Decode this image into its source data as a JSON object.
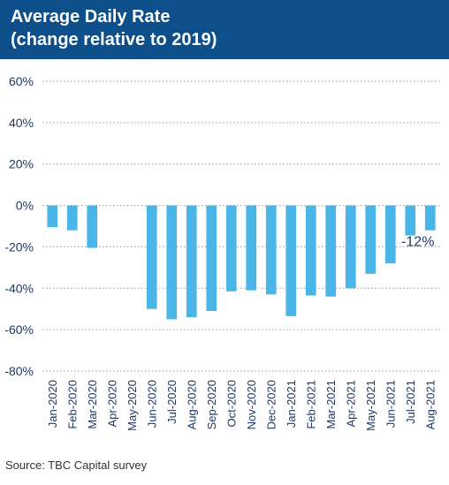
{
  "header": {
    "title_line1": "Average Daily Rate",
    "title_line2": "(change relative to 2019)",
    "background_color": "#0d4f8b",
    "text_color": "#ffffff"
  },
  "source": "Source: TBC Capital survey",
  "chart_data": {
    "type": "bar",
    "title": "Average Daily Rate (change relative to 2019)",
    "categories": [
      "Jan-2020",
      "Feb-2020",
      "Mar-2020",
      "Apr-2020",
      "May-2020",
      "Jun-2020",
      "Jul-2020",
      "Aug-2020",
      "Sep-2020",
      "Oct-2020",
      "Nov-2020",
      "Dec-2020",
      "Jan-2021",
      "Feb-2021",
      "Mar-2021",
      "Apr-2021",
      "May-2021",
      "Jun-2021",
      "Jul-2021",
      "Aug-2021"
    ],
    "values": [
      -10.5,
      -12,
      -20.5,
      null,
      null,
      -50,
      -55,
      -54,
      -51,
      -41.5,
      -41,
      -43,
      -53.5,
      -43.5,
      -44,
      -40,
      -33,
      -28,
      -14.5,
      -12
    ],
    "ylim": [
      -80,
      60
    ],
    "yticks": [
      -80,
      -60,
      -40,
      -20,
      0,
      20,
      40,
      60
    ],
    "ytick_labels": [
      "-80%",
      "-60%",
      "-40%",
      "-20%",
      "0%",
      "20%",
      "40%",
      "60%"
    ],
    "annotations": [
      {
        "category": "Aug-2021",
        "text": "-12%"
      }
    ],
    "bar_color": "#4ab6e8",
    "grid": true,
    "grid_style": "dotted",
    "xlabel": "",
    "ylabel": "",
    "legend": "none"
  }
}
